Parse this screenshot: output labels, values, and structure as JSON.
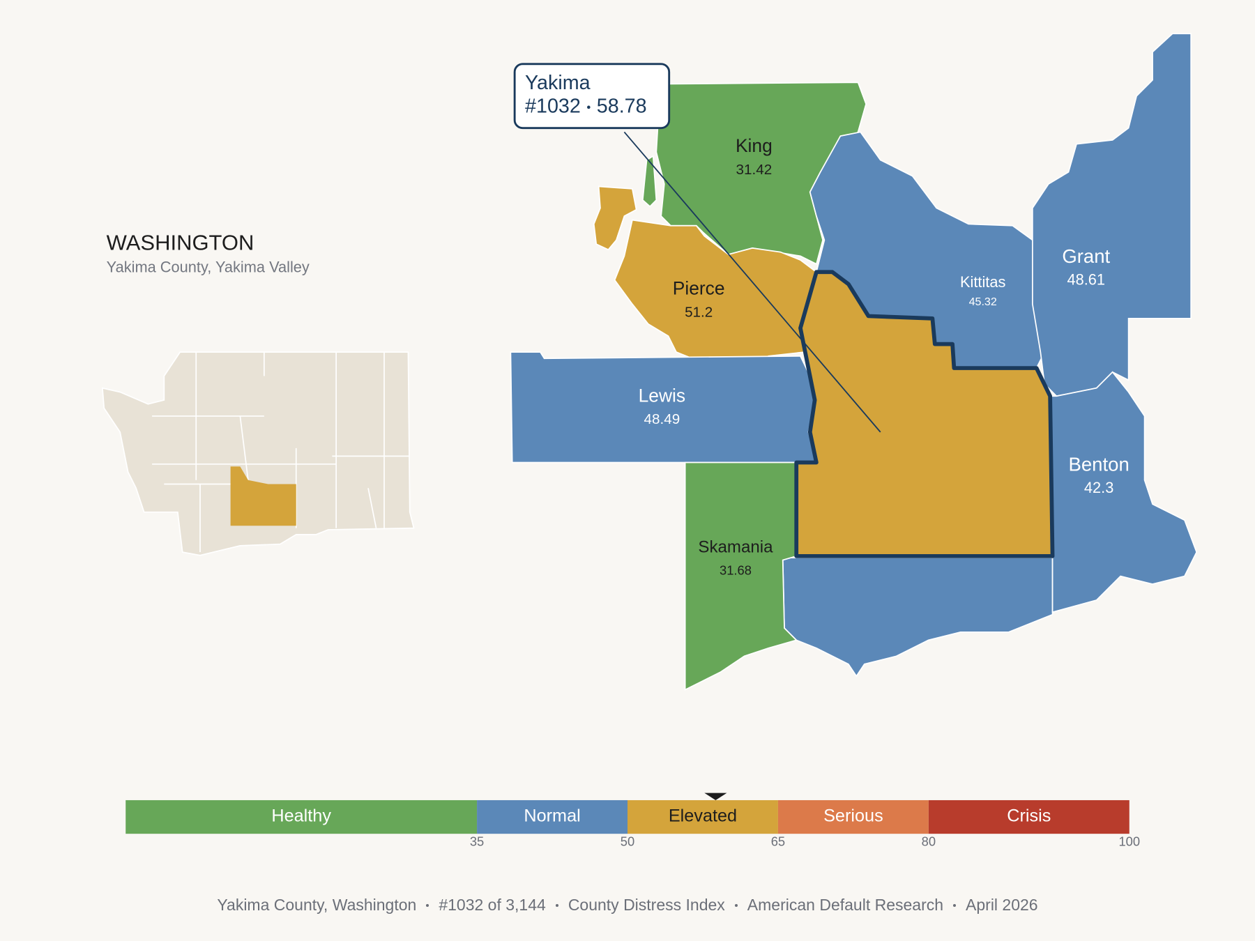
{
  "header": {
    "title": "WASHINGTON",
    "subtitle": "Yakima County, Yakima Valley"
  },
  "callout": {
    "name": "Yakima",
    "rank": "#1032",
    "value": 58.78
  },
  "counties": [
    {
      "name": "King",
      "value": 31.42
    },
    {
      "name": "Pierce",
      "value": 51.2
    },
    {
      "name": "Lewis",
      "value": 48.49
    },
    {
      "name": "Skamania",
      "value": 31.68
    },
    {
      "name": "Kittitas",
      "value": 45.32
    },
    {
      "name": "Grant",
      "value": 48.61
    },
    {
      "name": "Benton",
      "value": 42.3
    }
  ],
  "legend": {
    "range": [
      0,
      100
    ],
    "ticks": [
      35,
      50,
      65,
      80,
      100
    ],
    "bands": [
      {
        "name": "Healthy",
        "color": "#67a758",
        "label_color": "#ffffff"
      },
      {
        "name": "Normal",
        "color": "#5b88b8",
        "label_color": "#ffffff"
      },
      {
        "name": "Elevated",
        "color": "#d4a43b",
        "label_color": "#1d1d1d"
      },
      {
        "name": "Serious",
        "color": "#dc7a4a",
        "label_color": "#ffffff"
      },
      {
        "name": "Crisis",
        "color": "#b83c2c",
        "label_color": "#ffffff"
      }
    ]
  },
  "footer": [
    "Yakima County, Washington",
    "#1032 of 3,144",
    "County Distress Index",
    "American Default Research",
    "April 2026"
  ]
}
